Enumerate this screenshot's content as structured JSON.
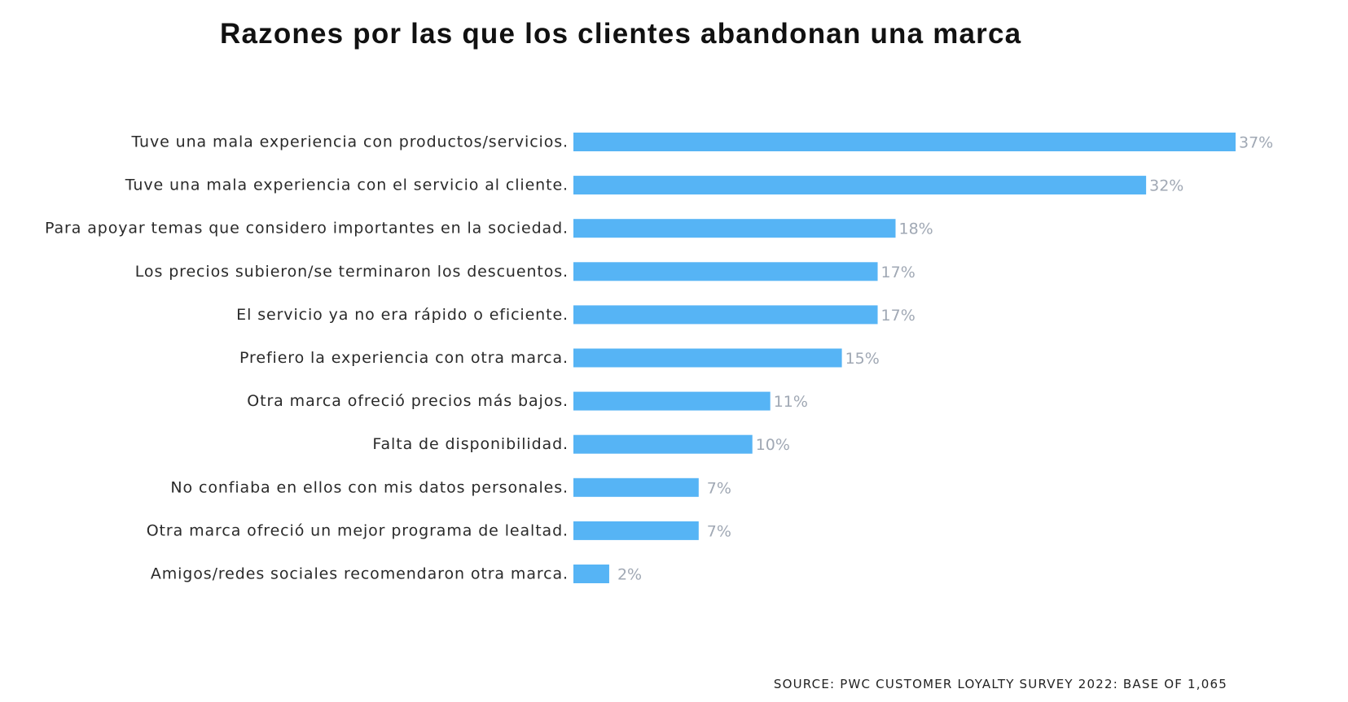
{
  "chart_data": {
    "type": "bar",
    "orientation": "horizontal",
    "title": "Razones por las que los clientes abandonan una marca",
    "xlabel": "",
    "ylabel": "",
    "xlim": [
      0,
      37
    ],
    "grid": false,
    "legend": "none",
    "bar_color": "#56b4f5",
    "value_label_color": "#a0a8b4",
    "categories": [
      "Tuve una mala experiencia con productos/servicios.",
      "Tuve una mala experiencia con el servicio al cliente.",
      "Para apoyar temas que considero importantes en la sociedad.",
      "Los precios subieron/se terminaron los descuentos.",
      "El servicio ya no era rápido o eficiente.",
      "Prefiero la experiencia con otra marca.",
      "Otra marca ofreció precios más bajos.",
      "Falta de disponibilidad.",
      "No confiaba en ellos con mis datos personales.",
      "Otra marca ofreció un mejor programa de lealtad.",
      "Amigos/redes sociales recomendaron otra marca."
    ],
    "values": [
      37,
      32,
      18,
      17,
      17,
      15,
      11,
      10,
      7,
      7,
      2
    ],
    "value_labels": [
      "37%",
      "32%",
      "18%",
      "17%",
      "17%",
      "15%",
      "11%",
      "10%",
      "7%",
      "7%",
      "2%"
    ],
    "unit": "%",
    "source": "SOURCE: PWC CUSTOMER LOYALTY SURVEY 2022: BASE OF 1,065"
  }
}
